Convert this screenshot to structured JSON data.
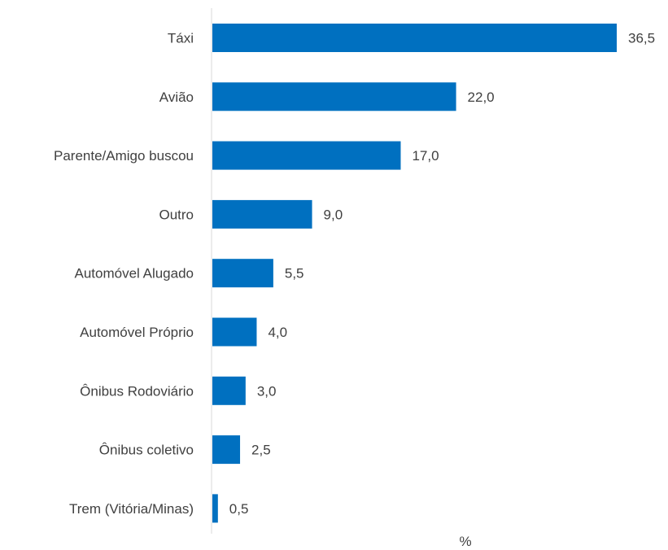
{
  "chart_data": {
    "type": "bar",
    "orientation": "horizontal",
    "categories": [
      "Táxi",
      "Avião",
      "Parente/Amigo buscou",
      "Outro",
      "Automóvel Alugado",
      "Automóvel Próprio",
      "Ônibus Rodoviário",
      "Ônibus coletivo",
      "Trem (Vitória/Minas)"
    ],
    "values": [
      36.5,
      22.0,
      17.0,
      9.0,
      5.5,
      4.0,
      3.0,
      2.5,
      0.5
    ],
    "value_labels": [
      "36,5",
      "22,0",
      "17,0",
      "9,0",
      "5,5",
      "4,0",
      "3,0",
      "2,5",
      "0,5"
    ],
    "xlabel": "%",
    "xlim": [
      0,
      36.5
    ],
    "grid": false,
    "bar_color": "#0070C0"
  }
}
